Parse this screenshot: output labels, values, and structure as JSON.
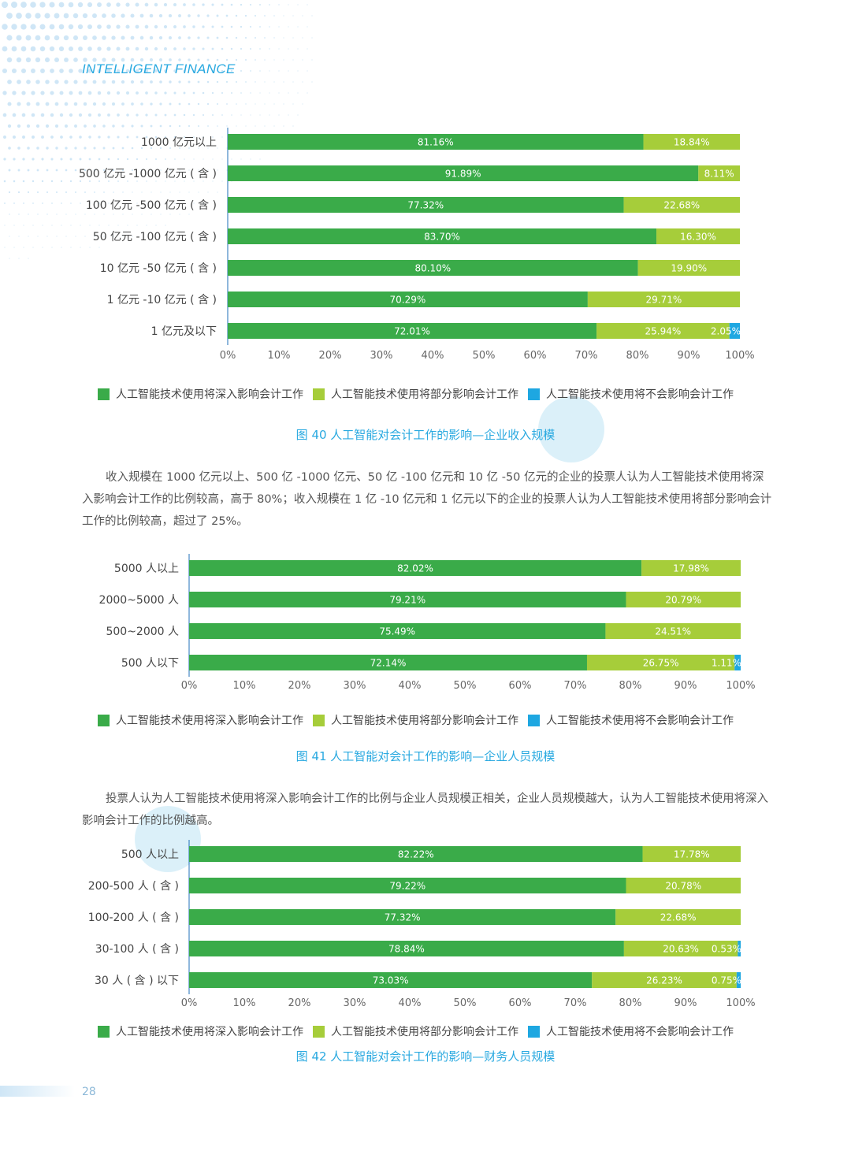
{
  "header": {
    "title": "INTELLIGENT FINANCE"
  },
  "colors": {
    "deep": "#3aab49",
    "partial": "#a6cd3a",
    "none": "#1ea7e1",
    "accent": "#29a9e0"
  },
  "legend": [
    {
      "label": "人工智能技术使用将深入影响会计工作",
      "color": "#3aab49"
    },
    {
      "label": "人工智能技术使用将部分影响会计工作",
      "color": "#a6cd3a"
    },
    {
      "label": "人工智能技术使用将不会影响会计工作",
      "color": "#1ea7e1"
    }
  ],
  "chart_data": [
    {
      "type": "bar",
      "orientation": "horizontal",
      "stacked": true,
      "title": "图 40 人工智能对会计工作的影响—企业收入规模",
      "categories": [
        "1000 亿元以上",
        "500 亿元 -1000 亿元 ( 含 )",
        "100 亿元 -500 亿元 ( 含 )",
        "50 亿元 -100 亿元 ( 含 )",
        "10 亿元 -50 亿元 ( 含 )",
        "1 亿元 -10 亿元 ( 含 )",
        "1 亿元及以下"
      ],
      "series": [
        {
          "name": "人工智能技术使用将深入影响会计工作",
          "values": [
            81.16,
            91.89,
            77.32,
            83.7,
            80.1,
            70.29,
            72.01
          ],
          "labels": [
            "81.16%",
            "91.89%",
            "77.32%",
            "83.70%",
            "80.10%",
            "70.29%",
            "72.01%"
          ]
        },
        {
          "name": "人工智能技术使用将部分影响会计工作",
          "values": [
            18.84,
            8.11,
            22.68,
            16.3,
            19.9,
            29.71,
            25.94
          ],
          "labels": [
            "18.84%",
            "8.11%",
            "22.68%",
            "16.30%",
            "19.90%",
            "29.71%",
            "25.94%"
          ]
        },
        {
          "name": "人工智能技术使用将不会影响会计工作",
          "values": [
            0,
            0,
            0,
            0,
            0,
            0,
            2.05
          ],
          "labels": [
            "",
            "",
            "",
            "",
            "",
            "",
            "2.05%"
          ]
        }
      ],
      "xticks": [
        "0%",
        "10%",
        "20%",
        "30%",
        "40%",
        "50%",
        "60%",
        "70%",
        "80%",
        "90%",
        "100%"
      ],
      "xlim": [
        0,
        100
      ],
      "legend_position": "bottom"
    },
    {
      "type": "bar",
      "orientation": "horizontal",
      "stacked": true,
      "title": "图 41 人工智能对会计工作的影响—企业人员规模",
      "categories": [
        "5000 人以上",
        "2000~5000 人",
        "500~2000 人",
        "500 人以下"
      ],
      "series": [
        {
          "name": "人工智能技术使用将深入影响会计工作",
          "values": [
            82.02,
            79.21,
            75.49,
            72.14
          ],
          "labels": [
            "82.02%",
            "79.21%",
            "75.49%",
            "72.14%"
          ]
        },
        {
          "name": "人工智能技术使用将部分影响会计工作",
          "values": [
            17.98,
            20.79,
            24.51,
            26.75
          ],
          "labels": [
            "17.98%",
            "20.79%",
            "24.51%",
            "26.75%"
          ]
        },
        {
          "name": "人工智能技术使用将不会影响会计工作",
          "values": [
            0,
            0,
            0,
            1.11
          ],
          "labels": [
            "",
            "",
            "",
            "1.11%"
          ]
        }
      ],
      "xticks": [
        "0%",
        "10%",
        "20%",
        "30%",
        "40%",
        "50%",
        "60%",
        "70%",
        "80%",
        "90%",
        "100%"
      ],
      "xlim": [
        0,
        100
      ],
      "legend_position": "bottom"
    },
    {
      "type": "bar",
      "orientation": "horizontal",
      "stacked": true,
      "title": "图 42 人工智能对会计工作的影响—财务人员规模",
      "categories": [
        "500 人以上",
        "200-500 人 ( 含 )",
        "100-200 人 ( 含 )",
        "30-100 人 ( 含 )",
        "30 人 ( 含 ) 以下"
      ],
      "series": [
        {
          "name": "人工智能技术使用将深入影响会计工作",
          "values": [
            82.22,
            79.22,
            77.32,
            78.84,
            73.03
          ],
          "labels": [
            "82.22%",
            "79.22%",
            "77.32%",
            "78.84%",
            "73.03%"
          ]
        },
        {
          "name": "人工智能技术使用将部分影响会计工作",
          "values": [
            17.78,
            20.78,
            22.68,
            20.63,
            26.23
          ],
          "labels": [
            "17.78%",
            "20.78%",
            "22.68%",
            "20.63%",
            "26.23%"
          ]
        },
        {
          "name": "人工智能技术使用将不会影响会计工作",
          "values": [
            0,
            0,
            0,
            0.53,
            0.75
          ],
          "labels": [
            "",
            "",
            "",
            "0.53%",
            "0.75%"
          ]
        }
      ],
      "xticks": [
        "0%",
        "10%",
        "20%",
        "30%",
        "40%",
        "50%",
        "60%",
        "70%",
        "80%",
        "90%",
        "100%"
      ],
      "xlim": [
        0,
        100
      ],
      "legend_position": "bottom"
    }
  ],
  "paragraphs": [
    "收入规模在 1000 亿元以上、500 亿 -1000 亿元、50 亿 -100 亿元和 10 亿 -50 亿元的企业的投票人认为人工智能技术使用将深入影响会计工作的比例较高，高于 80%；收入规模在 1 亿 -10 亿元和 1 亿元以下的企业的投票人认为人工智能技术使用将部分影响会计工作的比例较高，超过了 25%。",
    "投票人认为人工智能技术使用将深入影响会计工作的比例与企业人员规模正相关，企业人员规模越大，认为人工智能技术使用将深入影响会计工作的比例越高。"
  ],
  "page_number": "28"
}
